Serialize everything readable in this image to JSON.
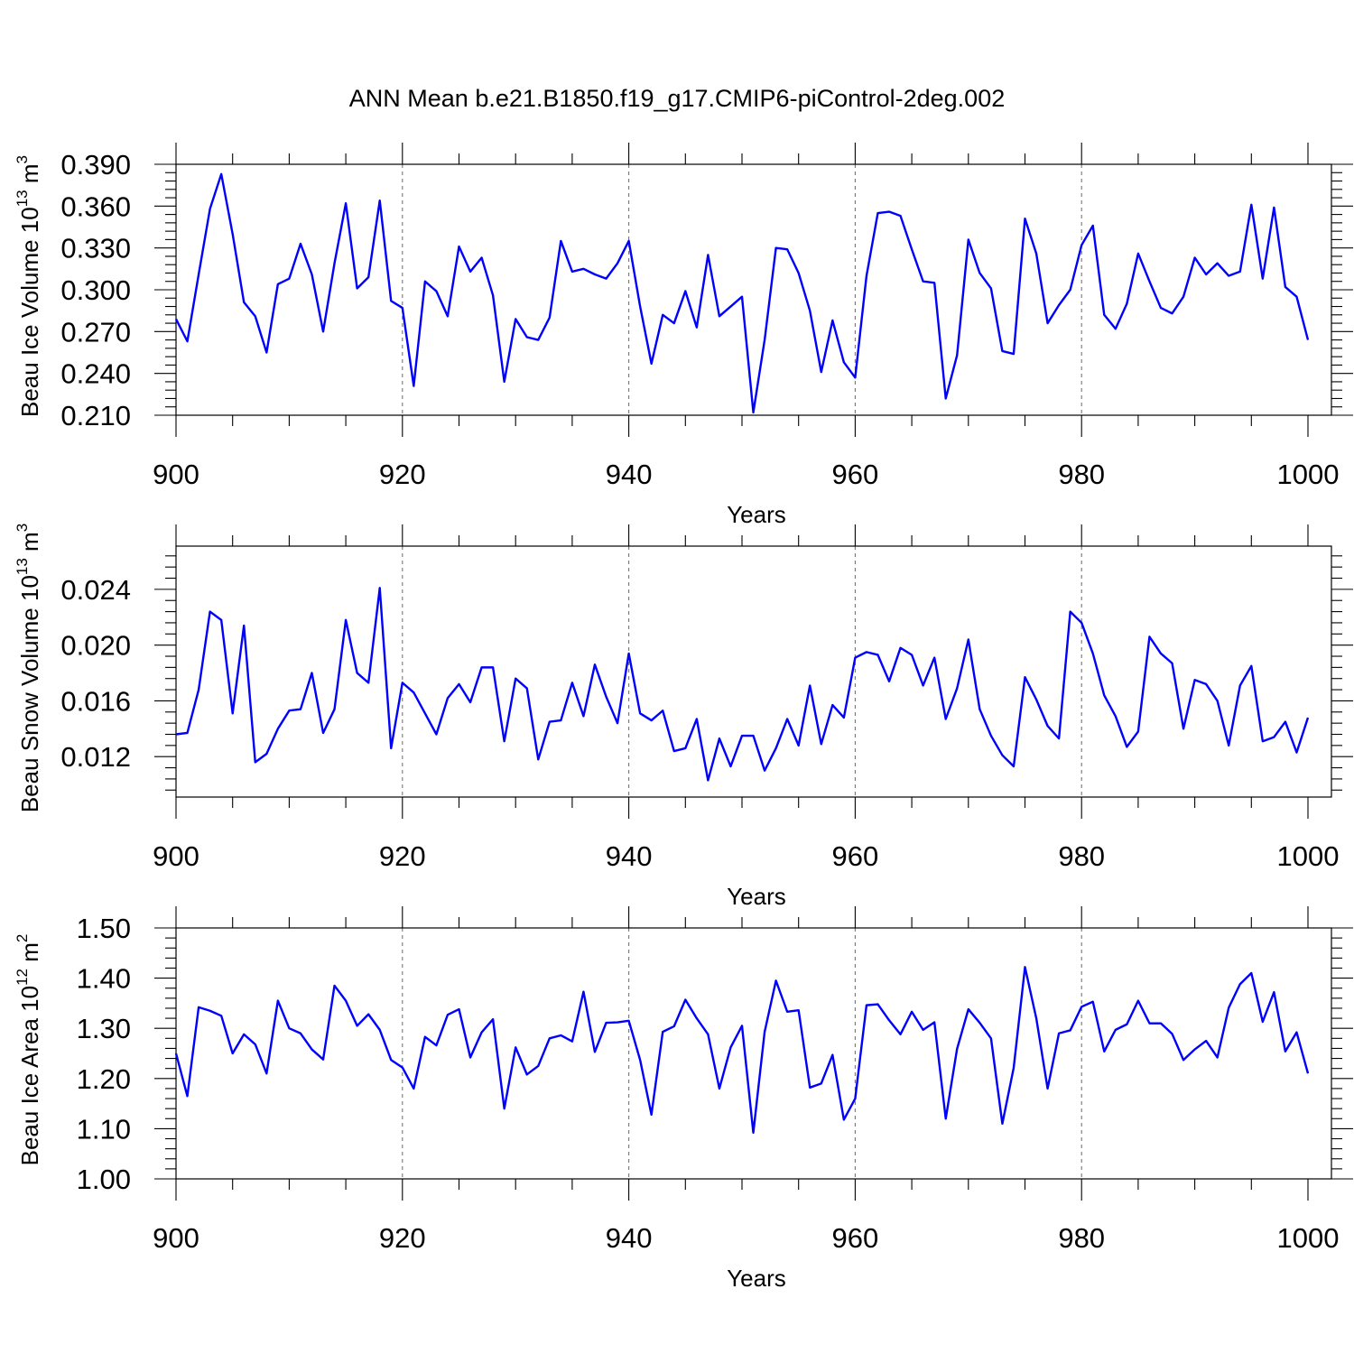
{
  "figure_title": "ANN Mean b.e21.B1850.f19_g17.CMIP6-piControl-2deg.002",
  "colors": {
    "series": "#0000ff",
    "frame": "#000000",
    "grid": "#777777"
  },
  "chart_data": [
    {
      "type": "line",
      "title": "",
      "xlabel": "Years",
      "ylabel": {
        "text": "Beau Ice Volume 10",
        "exponent": "13",
        "unit": " m",
        "unit_exponent": "3"
      },
      "xlim": [
        900,
        1000
      ],
      "ylim": [
        0.21,
        0.39
      ],
      "x_ticks": [
        900,
        920,
        940,
        960,
        980,
        1000
      ],
      "x_tick_labels": [
        "900",
        "920",
        "940",
        "960",
        "980",
        "1000"
      ],
      "y_ticks": [
        0.21,
        0.24,
        0.27,
        0.3,
        0.33,
        0.36,
        0.39
      ],
      "y_tick_labels": [
        "0.210",
        "0.240",
        "0.270",
        "0.300",
        "0.330",
        "0.360",
        "0.390"
      ],
      "grid": "vertical dashed at major x ticks",
      "x_start": 900,
      "series": [
        {
          "values": [
            0.279,
            0.263,
            0.311,
            0.358,
            0.383,
            0.34,
            0.291,
            0.281,
            0.255,
            0.304,
            0.308,
            0.333,
            0.311,
            0.27,
            0.319,
            0.362,
            0.301,
            0.309,
            0.364,
            0.292,
            0.287,
            0.231,
            0.306,
            0.299,
            0.281,
            0.331,
            0.313,
            0.323,
            0.296,
            0.234,
            0.279,
            0.266,
            0.264,
            0.28,
            0.335,
            0.313,
            0.315,
            0.311,
            0.308,
            0.319,
            0.335,
            0.288,
            0.247,
            0.282,
            0.276,
            0.299,
            0.273,
            0.325,
            0.281,
            0.288,
            0.295,
            0.212,
            0.264,
            0.33,
            0.329,
            0.312,
            0.285,
            0.241,
            0.278,
            0.248,
            0.237,
            0.31,
            0.355,
            0.356,
            0.353,
            0.329,
            0.306,
            0.305,
            0.222,
            0.253,
            0.336,
            0.312,
            0.301,
            0.256,
            0.254,
            0.351,
            0.326,
            0.276,
            0.289,
            0.3,
            0.332,
            0.346,
            0.282,
            0.272,
            0.29,
            0.326,
            0.306,
            0.287,
            0.283,
            0.295,
            0.323,
            0.311,
            0.319,
            0.31,
            0.313,
            0.361,
            0.308,
            0.359,
            0.302,
            0.295,
            0.264
          ]
        }
      ]
    },
    {
      "type": "line",
      "title": "",
      "xlabel": "Years",
      "ylabel": {
        "text": "Beau Snow Volume 10",
        "exponent": "13",
        "unit": " m",
        "unit_exponent": "3"
      },
      "xlim": [
        900,
        1000
      ],
      "ylim": [
        0.0091,
        0.0271
      ],
      "x_ticks": [
        900,
        920,
        940,
        960,
        980,
        1000
      ],
      "x_tick_labels": [
        "900",
        "920",
        "940",
        "960",
        "980",
        "1000"
      ],
      "y_ticks": [
        0.012,
        0.016,
        0.02,
        0.024
      ],
      "y_tick_labels": [
        "0.012",
        "0.016",
        "0.020",
        "0.024"
      ],
      "grid": "vertical dashed at major x ticks",
      "x_start": 900,
      "series": [
        {
          "values": [
            0.0136,
            0.0137,
            0.0168,
            0.0224,
            0.0218,
            0.0151,
            0.0214,
            0.0116,
            0.0122,
            0.014,
            0.0153,
            0.0154,
            0.018,
            0.0137,
            0.0154,
            0.0218,
            0.018,
            0.0173,
            0.0241,
            0.0126,
            0.0173,
            0.0166,
            0.0151,
            0.0136,
            0.0162,
            0.0172,
            0.0159,
            0.0184,
            0.0184,
            0.0131,
            0.0176,
            0.0169,
            0.0118,
            0.0145,
            0.0146,
            0.0173,
            0.0149,
            0.0186,
            0.0163,
            0.0144,
            0.0194,
            0.0151,
            0.0146,
            0.0153,
            0.0124,
            0.0126,
            0.0147,
            0.0103,
            0.0133,
            0.0113,
            0.0135,
            0.0135,
            0.011,
            0.0126,
            0.0147,
            0.0128,
            0.0171,
            0.0129,
            0.0157,
            0.0148,
            0.0191,
            0.0195,
            0.0193,
            0.0174,
            0.0198,
            0.0193,
            0.0171,
            0.0191,
            0.0147,
            0.0169,
            0.0204,
            0.0154,
            0.0135,
            0.0121,
            0.0113,
            0.0177,
            0.0161,
            0.0142,
            0.0133,
            0.0224,
            0.0216,
            0.0194,
            0.0164,
            0.0149,
            0.0127,
            0.0138,
            0.0206,
            0.0194,
            0.0187,
            0.014,
            0.0175,
            0.0172,
            0.016,
            0.0128,
            0.0171,
            0.0185,
            0.0131,
            0.0134,
            0.0145,
            0.0123,
            0.0148
          ]
        }
      ]
    },
    {
      "type": "line",
      "title": "",
      "xlabel": "Years",
      "ylabel": {
        "text": "Beau Ice Area 10",
        "exponent": "12",
        "unit": " m",
        "unit_exponent": "2"
      },
      "xlim": [
        900,
        1000
      ],
      "ylim": [
        1.0,
        1.5
      ],
      "x_ticks": [
        900,
        920,
        940,
        960,
        980,
        1000
      ],
      "x_tick_labels": [
        "900",
        "920",
        "940",
        "960",
        "980",
        "1000"
      ],
      "y_ticks": [
        1.0,
        1.1,
        1.2,
        1.3,
        1.4,
        1.5
      ],
      "y_tick_labels": [
        "1.00",
        "1.10",
        "1.20",
        "1.30",
        "1.40",
        "1.50"
      ],
      "grid": "vertical dashed at major x ticks",
      "x_start": 900,
      "series": [
        {
          "values": [
            1.25,
            1.165,
            1.342,
            1.335,
            1.325,
            1.25,
            1.288,
            1.268,
            1.21,
            1.355,
            1.3,
            1.29,
            1.258,
            1.238,
            1.385,
            1.355,
            1.305,
            1.328,
            1.297,
            1.237,
            1.222,
            1.18,
            1.283,
            1.266,
            1.327,
            1.338,
            1.242,
            1.292,
            1.318,
            1.14,
            1.262,
            1.208,
            1.225,
            1.28,
            1.286,
            1.274,
            1.373,
            1.253,
            1.311,
            1.312,
            1.315,
            1.237,
            1.128,
            1.293,
            1.304,
            1.357,
            1.32,
            1.288,
            1.18,
            1.262,
            1.305,
            1.092,
            1.293,
            1.395,
            1.333,
            1.336,
            1.182,
            1.19,
            1.247,
            1.118,
            1.16,
            1.346,
            1.348,
            1.316,
            1.288,
            1.333,
            1.297,
            1.312,
            1.12,
            1.259,
            1.338,
            1.311,
            1.28,
            1.11,
            1.221,
            1.422,
            1.32,
            1.18,
            1.29,
            1.296,
            1.343,
            1.353,
            1.254,
            1.297,
            1.308,
            1.355,
            1.31,
            1.31,
            1.289,
            1.237,
            1.258,
            1.275,
            1.242,
            1.341,
            1.388,
            1.41,
            1.313,
            1.372,
            1.254,
            1.292,
            1.21
          ]
        }
      ]
    }
  ]
}
